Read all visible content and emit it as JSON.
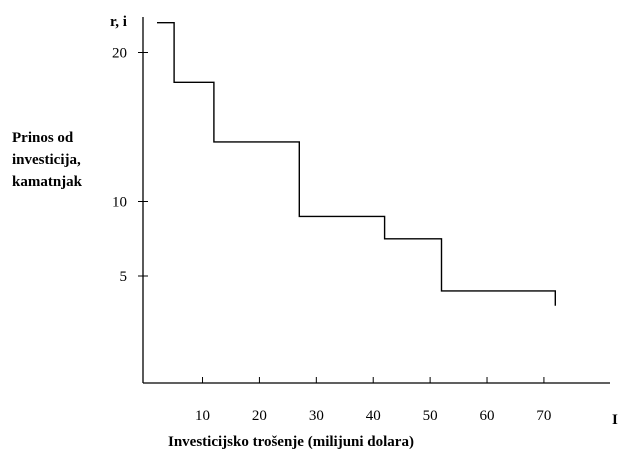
{
  "chart_data": {
    "type": "line",
    "style": "step",
    "y_axis_symbol": "r, i",
    "x_axis_symbol": "I",
    "ylabel_lines": [
      "Prinos od",
      "investicija,",
      "kamatnjak"
    ],
    "xlabel": "Investicijsko trošenje (milijuni dolara)",
    "x_ticks": [
      10,
      20,
      30,
      40,
      50,
      60,
      70
    ],
    "y_ticks": [
      5,
      10,
      20
    ],
    "xlim": [
      0,
      80
    ],
    "ylim": [
      2.5,
      23
    ],
    "grid": false,
    "legend": "none",
    "series": [
      {
        "x": [
          2,
          5,
          5,
          12,
          12,
          27,
          27,
          42,
          42,
          52,
          52,
          72,
          72
        ],
        "y": [
          22,
          22,
          18,
          18,
          14,
          14,
          9,
          9,
          7.5,
          7.5,
          4,
          4,
          3
        ]
      }
    ]
  }
}
